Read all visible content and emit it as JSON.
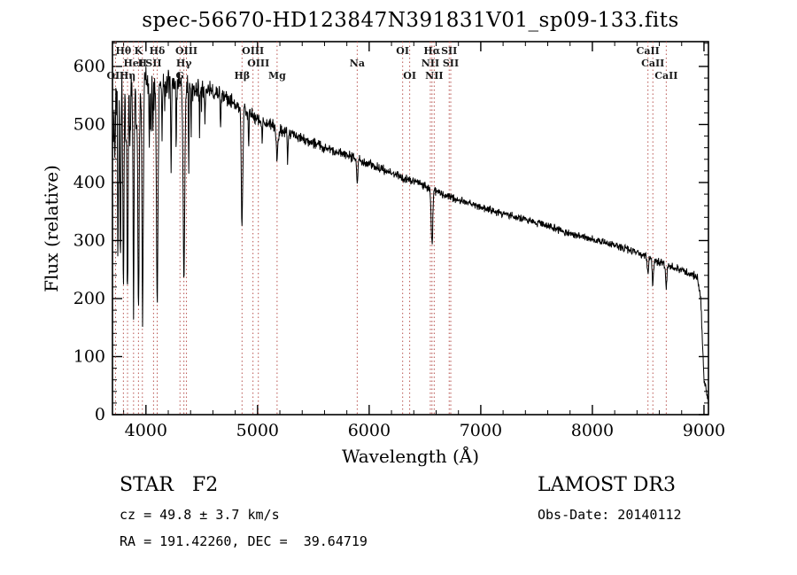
{
  "chart_data": {
    "type": "line",
    "title": "spec-56670-HD123847N391831V01_sp09-133.fits",
    "xlabel": "Wavelength (Å)",
    "ylabel": "Flux (relative)",
    "xlim": [
      3700,
      9040
    ],
    "ylim": [
      0,
      643
    ],
    "x_major_ticks": [
      4000,
      5000,
      6000,
      7000,
      8000,
      9000
    ],
    "x_minor_step": 200,
    "y_major_ticks": [
      0,
      100,
      200,
      300,
      400,
      500,
      600
    ],
    "y_minor_step": 20,
    "line_color": "#000000",
    "marker_color": "#b85450",
    "marker_label_color": "#1a1a1a",
    "sample_step": 3,
    "noise_seed": 42,
    "continuum": [
      [
        3700,
        480
      ],
      [
        3740,
        555
      ],
      [
        3800,
        560
      ],
      [
        3900,
        565
      ],
      [
        4000,
        570
      ],
      [
        4200,
        568
      ],
      [
        4400,
        565
      ],
      [
        4600,
        556
      ],
      [
        4800,
        535
      ],
      [
        4900,
        522
      ],
      [
        5000,
        510
      ],
      [
        5200,
        492
      ],
      [
        5400,
        476
      ],
      [
        5600,
        460
      ],
      [
        5800,
        447
      ],
      [
        6000,
        432
      ],
      [
        6200,
        416
      ],
      [
        6400,
        402
      ],
      [
        6600,
        385
      ],
      [
        6800,
        370
      ],
      [
        7000,
        358
      ],
      [
        7200,
        346
      ],
      [
        7400,
        336
      ],
      [
        7600,
        325
      ],
      [
        7800,
        312
      ],
      [
        8000,
        302
      ],
      [
        8200,
        292
      ],
      [
        8400,
        280
      ],
      [
        8600,
        262
      ],
      [
        8800,
        248
      ],
      [
        8940,
        238
      ],
      [
        8970,
        205
      ],
      [
        9000,
        60
      ],
      [
        9040,
        25
      ]
    ],
    "absorption_lines": [
      [
        3750,
        300,
        4
      ],
      [
        3771,
        320,
        4
      ],
      [
        3798,
        350,
        5
      ],
      [
        3820,
        120,
        3
      ],
      [
        3835,
        360,
        5
      ],
      [
        3856,
        100,
        3
      ],
      [
        3889,
        370,
        5
      ],
      [
        3914,
        90,
        3
      ],
      [
        3933,
        380,
        6
      ],
      [
        3970,
        390,
        6
      ],
      [
        4030,
        110,
        3
      ],
      [
        4045,
        90,
        3
      ],
      [
        4063,
        80,
        3
      ],
      [
        4101,
        380,
        7
      ],
      [
        4144,
        90,
        3
      ],
      [
        4226,
        160,
        3
      ],
      [
        4271,
        100,
        3
      ],
      [
        4340,
        340,
        7
      ],
      [
        4383,
        110,
        3
      ],
      [
        4405,
        80,
        3
      ],
      [
        4481,
        70,
        3
      ],
      [
        4528,
        60,
        3
      ],
      [
        4668,
        50,
        3
      ],
      [
        4861,
        200,
        7
      ],
      [
        4920,
        60,
        3
      ],
      [
        5041,
        40,
        3
      ],
      [
        5175,
        50,
        8
      ],
      [
        5270,
        50,
        4
      ],
      [
        5893,
        35,
        6
      ],
      [
        6563,
        95,
        7
      ],
      [
        8498,
        25,
        6
      ],
      [
        8542,
        45,
        6
      ],
      [
        8662,
        40,
        6
      ]
    ],
    "noise_profile": [
      [
        3700,
        80
      ],
      [
        3760,
        45
      ],
      [
        3850,
        28
      ],
      [
        4000,
        24
      ],
      [
        4300,
        20
      ],
      [
        4600,
        15
      ],
      [
        5000,
        11
      ],
      [
        5400,
        9
      ],
      [
        5800,
        8
      ],
      [
        6200,
        7
      ],
      [
        6600,
        7
      ],
      [
        7000,
        6
      ],
      [
        7400,
        6
      ],
      [
        7800,
        6
      ],
      [
        8200,
        6
      ],
      [
        8600,
        7
      ],
      [
        8900,
        7
      ],
      [
        9040,
        6
      ]
    ],
    "spectral_line_markers": [
      {
        "wl": 3727,
        "label": "OII",
        "row": 2
      },
      {
        "wl": 3798,
        "label": "Hθ",
        "row": 0
      },
      {
        "wl": 3835,
        "label": "Hη",
        "row": 2
      },
      {
        "wl": 3889,
        "label": "HeI",
        "row": 1
      },
      {
        "wl": 3933,
        "label": "K",
        "row": 0
      },
      {
        "wl": 3968,
        "label": "H",
        "row": 1
      },
      {
        "wl": 4068,
        "label": "SII",
        "row": 1
      },
      {
        "wl": 4101,
        "label": "Hδ",
        "row": 0
      },
      {
        "wl": 4305,
        "label": "G",
        "row": 2
      },
      {
        "wl": 4340,
        "label": "Hγ",
        "row": 1
      },
      {
        "wl": 4363,
        "label": "OIII",
        "row": 0
      },
      {
        "wl": 4861,
        "label": "Hβ",
        "row": 2
      },
      {
        "wl": 4959,
        "label": "OIII",
        "row": 0
      },
      {
        "wl": 5007,
        "label": "OIII",
        "row": 1
      },
      {
        "wl": 5175,
        "label": "Mg",
        "row": 2
      },
      {
        "wl": 5893,
        "label": "Na",
        "row": 1
      },
      {
        "wl": 6300,
        "label": "OI",
        "row": 0
      },
      {
        "wl": 6363,
        "label": "OI",
        "row": 2
      },
      {
        "wl": 6548,
        "label": "NII",
        "row": 1
      },
      {
        "wl": 6563,
        "label": "Hα",
        "row": 0
      },
      {
        "wl": 6583,
        "label": "NII",
        "row": 2
      },
      {
        "wl": 6717,
        "label": "SII",
        "row": 0
      },
      {
        "wl": 6731,
        "label": "SII",
        "row": 1
      },
      {
        "wl": 8498,
        "label": "CaII",
        "row": 0
      },
      {
        "wl": 8542,
        "label": "CaII",
        "row": 1
      },
      {
        "wl": 8662,
        "label": "CaII",
        "row": 2
      }
    ]
  },
  "annotations": {
    "class_line": "STAR   F2",
    "cz_line": "cz = 49.8 ± 3.7 km/s",
    "radec_line": "RA = 191.42260, DEC =  39.64719",
    "survey": "LAMOST DR3",
    "obs_date": "Obs-Date: 20140112"
  }
}
